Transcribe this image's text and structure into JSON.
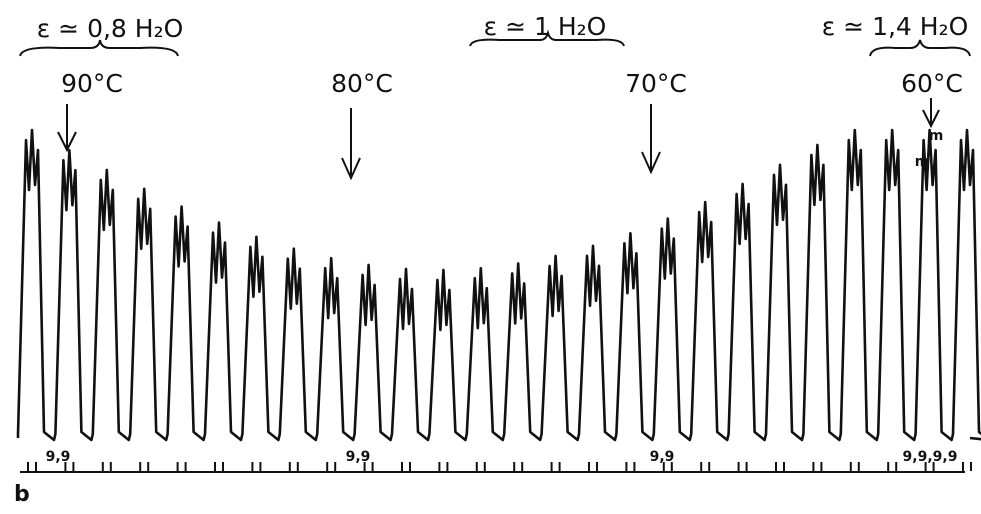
{
  "annotations": [
    "ε ≃ 0,8 H₂O",
    "ε ≃ 1 H₂O",
    "ε ≃ 1,4 H₂O"
  ],
  "temperatures": [
    "90°C",
    "80°C",
    "70°C",
    "60°C"
  ],
  "peak_labels": [
    "m",
    "m"
  ],
  "bottom_labels": [
    "9,9",
    "9,9",
    "9,9",
    "9,9,9,9"
  ],
  "panel_label": "b"
}
